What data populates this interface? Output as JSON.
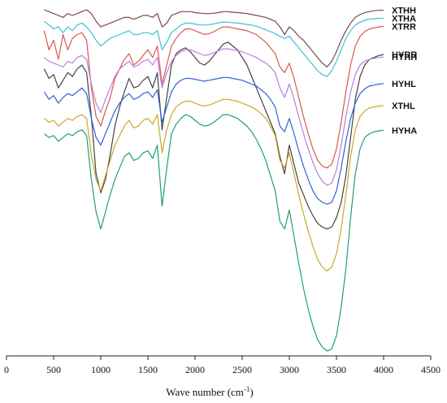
{
  "chart_data": {
    "type": "line",
    "title": "",
    "xlabel": "Wave number (cm",
    "xlabel_sup": "-1",
    "xlabel_suffix": ")",
    "ylabel": "",
    "xlim": [
      0,
      4500
    ],
    "x_ticks": [
      0,
      500,
      1000,
      1500,
      2000,
      2500,
      3000,
      3500,
      4000,
      4500
    ],
    "legend": "right-end labels",
    "grid": false,
    "series": [
      {
        "name": "XTHH",
        "color": "#7b4a43",
        "x": [
          400,
          450,
          500,
          550,
          600,
          650,
          700,
          750,
          800,
          850,
          900,
          950,
          1000,
          1050,
          1100,
          1150,
          1200,
          1250,
          1300,
          1350,
          1400,
          1450,
          1500,
          1550,
          1600,
          1650,
          1700,
          1750,
          1800,
          1850,
          1900,
          1950,
          2000,
          2050,
          2100,
          2150,
          2200,
          2250,
          2300,
          2350,
          2400,
          2450,
          2500,
          2550,
          2600,
          2650,
          2700,
          2750,
          2800,
          2850,
          2900,
          2950,
          3000,
          3050,
          3100,
          3150,
          3200,
          3250,
          3300,
          3350,
          3400,
          3450,
          3500,
          3550,
          3600,
          3650,
          3700,
          3750,
          3800,
          3850,
          3900,
          3950,
          4000
        ],
        "y": [
          101,
          100,
          99,
          98,
          97,
          99,
          98,
          99,
          100,
          101,
          99,
          95,
          92,
          93,
          94,
          95,
          96,
          97,
          97,
          96,
          97,
          98,
          98,
          97,
          99,
          92,
          94,
          98,
          99,
          100,
          100,
          100,
          99.5,
          99.2,
          99,
          99,
          99.2,
          99.5,
          100,
          100,
          99.7,
          99.5,
          99.3,
          99,
          98.5,
          98,
          97.5,
          97,
          96,
          95,
          92,
          88,
          92,
          90,
          87,
          85,
          82,
          79,
          76,
          73,
          71,
          74,
          79,
          85,
          90,
          94,
          97,
          98.5,
          99.5,
          100,
          100.5,
          100.7,
          100.8
        ]
      },
      {
        "name": "XTHA",
        "color": "#3cc1d6",
        "x": [
          400,
          450,
          500,
          550,
          600,
          650,
          700,
          750,
          800,
          850,
          900,
          950,
          1000,
          1050,
          1100,
          1150,
          1200,
          1250,
          1300,
          1350,
          1400,
          1450,
          1500,
          1550,
          1600,
          1650,
          1700,
          1750,
          1800,
          1850,
          1900,
          1950,
          2000,
          2050,
          2100,
          2150,
          2200,
          2250,
          2300,
          2350,
          2400,
          2450,
          2500,
          2550,
          2600,
          2650,
          2700,
          2750,
          2800,
          2850,
          2900,
          2950,
          3000,
          3050,
          3100,
          3150,
          3200,
          3250,
          3300,
          3350,
          3400,
          3450,
          3500,
          3550,
          3600,
          3650,
          3700,
          3750,
          3800,
          3850,
          3900,
          3950,
          4000
        ],
        "y": [
          95,
          93,
          91,
          92,
          89,
          92,
          90,
          93,
          94,
          92,
          89,
          85,
          82,
          84,
          86,
          87,
          88,
          89,
          90,
          88,
          88,
          89,
          89,
          88,
          90,
          80,
          84,
          89,
          91,
          93,
          94,
          94,
          93.5,
          93,
          93,
          93.2,
          93.6,
          94.2,
          94.6,
          94.5,
          94.2,
          94,
          93.7,
          93.3,
          93,
          92.3,
          91.5,
          90.5,
          89.5,
          88.5,
          87,
          86,
          87,
          84,
          81,
          78,
          75,
          72,
          69,
          67,
          66,
          69,
          74,
          80,
          86,
          90,
          93,
          94.5,
          95.5,
          96,
          96.3,
          96.5,
          96.6
        ]
      },
      {
        "name": "XTRR",
        "color": "#d85a4c",
        "x": [
          400,
          450,
          500,
          550,
          600,
          650,
          700,
          750,
          800,
          850,
          900,
          950,
          1000,
          1050,
          1100,
          1150,
          1200,
          1250,
          1300,
          1350,
          1400,
          1450,
          1500,
          1550,
          1600,
          1650,
          1700,
          1750,
          1800,
          1850,
          1900,
          1950,
          2000,
          2050,
          2100,
          2150,
          2200,
          2250,
          2300,
          2350,
          2400,
          2450,
          2500,
          2550,
          2600,
          2650,
          2700,
          2750,
          2800,
          2850,
          2900,
          2950,
          3000,
          3050,
          3100,
          3150,
          3200,
          3250,
          3300,
          3350,
          3400,
          3450,
          3500,
          3550,
          3600,
          3650,
          3700,
          3750,
          3800,
          3850,
          3900,
          3950,
          4000
        ],
        "y": [
          90,
          80,
          85,
          75,
          88,
          80,
          86,
          88,
          89,
          85,
          60,
          45,
          40,
          48,
          55,
          65,
          70,
          75,
          78,
          72,
          74,
          77,
          80,
          76,
          82,
          62,
          72,
          82,
          86,
          89,
          91,
          91,
          90,
          89,
          88,
          88.5,
          89.5,
          91,
          92,
          92,
          91.5,
          91,
          90.5,
          90,
          89,
          88,
          86,
          84,
          81,
          78,
          71,
          68,
          73,
          65,
          55,
          45,
          36,
          28,
          22,
          19,
          18,
          20,
          28,
          42,
          58,
          72,
          82,
          87,
          89.5,
          91,
          91.5,
          92,
          92.3
        ]
      },
      {
        "name": "HYRR",
        "color": "#444444",
        "x": [
          400,
          450,
          500,
          550,
          600,
          650,
          700,
          750,
          800,
          850,
          900,
          950,
          1000,
          1050,
          1100,
          1150,
          1200,
          1250,
          1300,
          1350,
          1400,
          1450,
          1500,
          1550,
          1600,
          1650,
          1700,
          1750,
          1800,
          1850,
          1900,
          1950,
          2000,
          2050,
          2100,
          2150,
          2200,
          2250,
          2300,
          2350,
          2400,
          2450,
          2500,
          2550,
          2600,
          2650,
          2700,
          2750,
          2800,
          2850,
          2900,
          2950,
          3000,
          3050,
          3100,
          3150,
          3200,
          3250,
          3300,
          3350,
          3400,
          3450,
          3500,
          3550,
          3600,
          3650,
          3700,
          3750,
          3800,
          3850,
          3900,
          3950,
          4000
        ],
        "y": [
          70,
          65,
          67,
          60,
          64,
          68,
          66,
          70,
          72,
          68,
          45,
          15,
          5,
          12,
          25,
          40,
          50,
          58,
          65,
          60,
          61,
          64,
          66,
          60,
          68,
          38,
          55,
          72,
          78,
          80,
          81,
          79,
          76,
          73,
          72,
          74,
          77,
          80,
          83,
          84,
          82,
          80,
          76,
          72,
          66,
          60,
          54,
          48,
          42,
          36,
          24,
          15,
          30,
          20,
          10,
          4,
          -2,
          -7,
          -11,
          -13,
          -14,
          -13,
          -8,
          0,
          14,
          34,
          54,
          66,
          72,
          75,
          76,
          77,
          77.5
        ]
      },
      {
        "name": "HYHH",
        "color": "#b87ee0",
        "x": [
          400,
          450,
          500,
          550,
          600,
          650,
          700,
          750,
          800,
          850,
          900,
          950,
          1000,
          1050,
          1100,
          1150,
          1200,
          1250,
          1300,
          1350,
          1400,
          1450,
          1500,
          1550,
          1600,
          1650,
          1700,
          1750,
          1800,
          1850,
          1900,
          1950,
          2000,
          2050,
          2100,
          2150,
          2200,
          2250,
          2300,
          2350,
          2400,
          2450,
          2500,
          2550,
          2600,
          2650,
          2700,
          2750,
          2800,
          2850,
          2900,
          2950,
          3000,
          3050,
          3100,
          3150,
          3200,
          3250,
          3300,
          3350,
          3400,
          3450,
          3500,
          3550,
          3600,
          3650,
          3700,
          3750,
          3800,
          3850,
          3900,
          3950,
          4000
        ],
        "y": [
          76,
          74,
          73,
          72,
          71,
          74,
          73,
          76,
          77,
          75,
          62,
          52,
          47,
          54,
          60,
          66,
          70,
          72,
          74,
          71,
          72,
          74,
          75,
          72,
          76,
          60,
          68,
          74,
          77,
          79,
          80,
          80,
          79,
          78,
          77,
          77.5,
          78.5,
          79.5,
          80.5,
          80.5,
          80,
          79.5,
          79,
          78,
          77,
          76,
          74.5,
          73,
          71,
          68,
          60,
          55,
          62,
          54,
          45,
          36,
          28,
          21,
          15,
          11,
          9,
          10,
          17,
          30,
          45,
          58,
          67,
          72,
          74,
          75,
          75.5,
          76,
          76.2
        ]
      },
      {
        "name": "HYHL",
        "color": "#2f62d8",
        "x": [
          400,
          450,
          500,
          550,
          600,
          650,
          700,
          750,
          800,
          850,
          900,
          950,
          1000,
          1050,
          1100,
          1150,
          1200,
          1250,
          1300,
          1350,
          1400,
          1450,
          1500,
          1550,
          1600,
          1650,
          1700,
          1750,
          1800,
          1850,
          1900,
          1950,
          2000,
          2050,
          2100,
          2150,
          2200,
          2250,
          2300,
          2350,
          2400,
          2450,
          2500,
          2550,
          2600,
          2650,
          2700,
          2750,
          2800,
          2850,
          2900,
          2950,
          3000,
          3050,
          3100,
          3150,
          3200,
          3250,
          3300,
          3350,
          3400,
          3450,
          3500,
          3550,
          3600,
          3650,
          3700,
          3750,
          3800,
          3850,
          3900,
          3950,
          4000
        ],
        "y": [
          58,
          54,
          56,
          52,
          55,
          57,
          56,
          58,
          60,
          57,
          44,
          34,
          30,
          36,
          42,
          48,
          52,
          55,
          57,
          54,
          55,
          57,
          58,
          55,
          59,
          42,
          50,
          58,
          62,
          64,
          65,
          65,
          64.5,
          64,
          63.5,
          64,
          64.5,
          65,
          65.5,
          65.5,
          65,
          64.5,
          64,
          63,
          62,
          61,
          59,
          57,
          54,
          50,
          40,
          37,
          44,
          36,
          27,
          19,
          12,
          6,
          2,
          0,
          -1,
          0,
          6,
          18,
          32,
          44,
          52,
          57,
          59.5,
          61,
          61.5,
          62,
          62.3
        ]
      },
      {
        "name": "XTHL",
        "color": "#c9a82a",
        "x": [
          400,
          450,
          500,
          550,
          600,
          650,
          700,
          750,
          800,
          850,
          900,
          950,
          1000,
          1050,
          1100,
          1150,
          1200,
          1250,
          1300,
          1350,
          1400,
          1450,
          1500,
          1550,
          1600,
          1650,
          1700,
          1750,
          1800,
          1850,
          1900,
          1950,
          2000,
          2050,
          2100,
          2150,
          2200,
          2250,
          2300,
          2350,
          2400,
          2450,
          2500,
          2550,
          2600,
          2650,
          2700,
          2750,
          2800,
          2850,
          2900,
          2950,
          3000,
          3050,
          3100,
          3150,
          3200,
          3250,
          3300,
          3350,
          3400,
          3450,
          3500,
          3550,
          3600,
          3650,
          3700,
          3750,
          3800,
          3850,
          3900,
          3950,
          4000
        ],
        "y": [
          44,
          42,
          43,
          40,
          42,
          44,
          43,
          45,
          46,
          44,
          25,
          12,
          6,
          14,
          22,
          30,
          35,
          40,
          43,
          39,
          40,
          43,
          44,
          41,
          46,
          26,
          38,
          46,
          50,
          52,
          53,
          53,
          52,
          51,
          50.5,
          51,
          52,
          53,
          54,
          54,
          53.5,
          53,
          52,
          51,
          50,
          48.5,
          46.5,
          44,
          40,
          35,
          22,
          18,
          26,
          15,
          4,
          -6,
          -15,
          -23,
          -30,
          -34,
          -36,
          -34,
          -27,
          -14,
          4,
          24,
          38,
          45,
          48,
          49.5,
          50,
          50.5,
          50.8
        ]
      },
      {
        "name": "HYHA",
        "color": "#1f9e7a",
        "x": [
          400,
          450,
          500,
          550,
          600,
          650,
          700,
          750,
          800,
          850,
          900,
          950,
          1000,
          1050,
          1100,
          1150,
          1200,
          1250,
          1300,
          1350,
          1400,
          1450,
          1500,
          1550,
          1600,
          1650,
          1700,
          1750,
          1800,
          1850,
          1900,
          1950,
          2000,
          2050,
          2100,
          2150,
          2200,
          2250,
          2300,
          2350,
          2400,
          2450,
          2500,
          2550,
          2600,
          2650,
          2700,
          2750,
          2800,
          2850,
          2900,
          2950,
          3000,
          3050,
          3100,
          3150,
          3200,
          3250,
          3300,
          3350,
          3400,
          3450,
          3500,
          3550,
          3600,
          3650,
          3700,
          3750,
          3800,
          3850,
          3900,
          3950,
          4000
        ],
        "y": [
          36,
          34,
          35,
          32,
          34,
          36,
          35,
          37,
          38,
          35,
          12,
          -5,
          -14,
          -5,
          4,
          12,
          18,
          24,
          26,
          22,
          23,
          26,
          27,
          23,
          30,
          -2,
          18,
          36,
          41,
          44,
          46,
          45,
          43,
          41,
          40,
          40.5,
          42,
          44,
          46,
          46,
          45,
          44,
          42,
          40,
          37,
          33,
          28,
          22,
          14,
          6,
          -10,
          -14,
          -4,
          -18,
          -32,
          -45,
          -56,
          -65,
          -72,
          -76,
          -78,
          -77,
          -70,
          -55,
          -35,
          -8,
          15,
          28,
          34,
          36,
          37,
          37.5,
          37.8
        ]
      }
    ]
  }
}
